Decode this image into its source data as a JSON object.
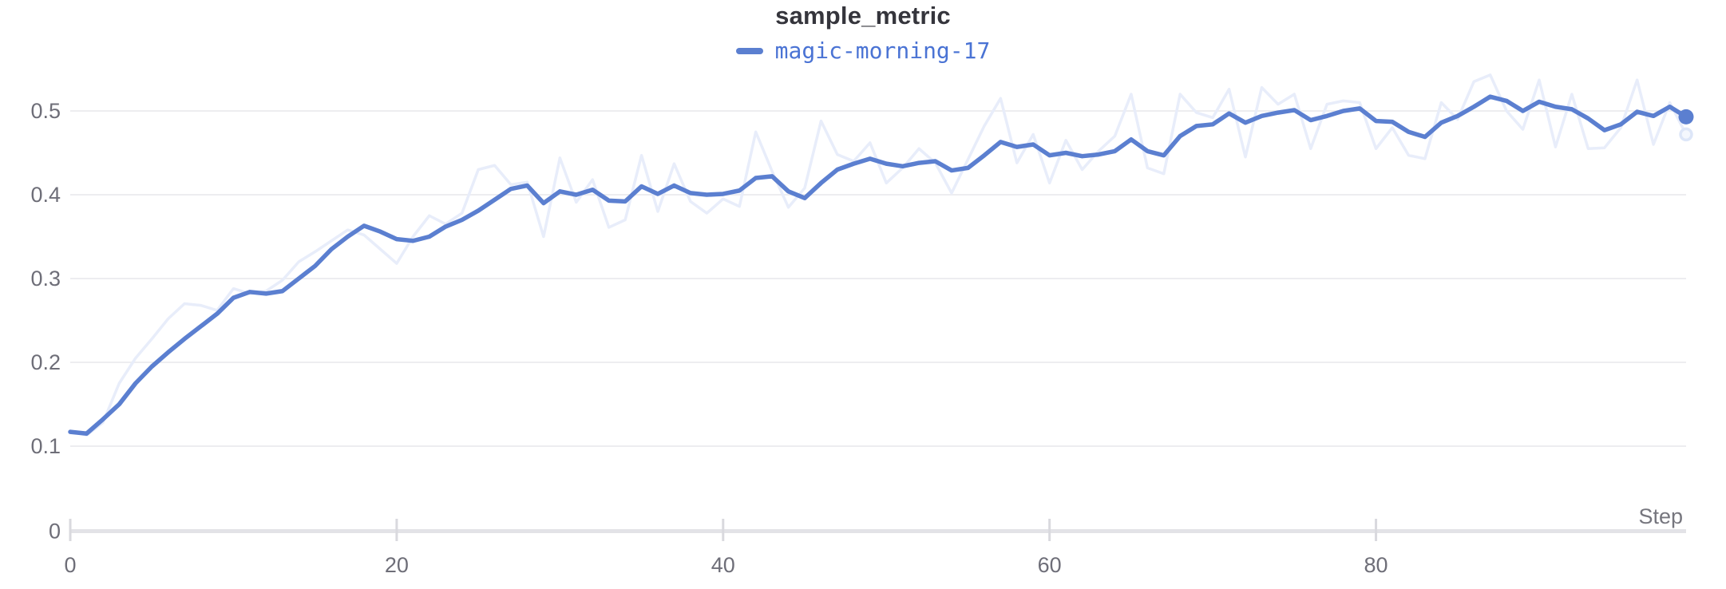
{
  "chart": {
    "title": "sample_metric",
    "legend": [
      {
        "label": "magic-morning-17"
      }
    ],
    "xlabel": "Step"
  },
  "palette": {
    "line_color": "#5b7fd0",
    "raw_line_color": "#e8edfa",
    "raw_ring_fill": "#f4f7fd",
    "raw_ring_stroke": "#dde6f8",
    "legend_text_color": "#4a73d4",
    "title_color": "#35353c",
    "tick_label_color": "#6e6e78",
    "axis_title_color": "#76767e",
    "gridline_color": "#ededf0",
    "axis_line_color": "#e3e3e7",
    "tick_mark_color": "#d9d9de",
    "background": "#ffffff"
  },
  "chart_data": {
    "type": "line",
    "title": "sample_metric",
    "xlabel": "Step",
    "ylabel": "",
    "xlim": [
      0,
      99
    ],
    "ylim": [
      0,
      0.542
    ],
    "x_ticks": [
      0,
      20,
      40,
      60,
      80
    ],
    "x_tick_labels": [
      "0",
      "20",
      "40",
      "60",
      "80"
    ],
    "y_ticks": [
      0,
      0.1,
      0.2,
      0.3,
      0.4,
      0.5
    ],
    "y_tick_labels": [
      "0",
      "0.1",
      "0.2",
      "0.3",
      "0.4",
      "0.5"
    ],
    "grid": "horizontal",
    "legend_position": "top-center",
    "x_start": 0,
    "x_step": 1,
    "n_points": 100,
    "series": [
      {
        "name": "magic-morning-17 (raw)",
        "role": "raw",
        "end_marker": "ring",
        "values": [
          0.118,
          0.113,
          0.128,
          0.175,
          0.205,
          0.228,
          0.252,
          0.27,
          0.268,
          0.262,
          0.288,
          0.282,
          0.285,
          0.298,
          0.32,
          0.332,
          0.345,
          0.358,
          0.352,
          0.335,
          0.318,
          0.35,
          0.375,
          0.365,
          0.378,
          0.43,
          0.435,
          0.412,
          0.415,
          0.35,
          0.444,
          0.391,
          0.418,
          0.361,
          0.37,
          0.447,
          0.38,
          0.437,
          0.392,
          0.378,
          0.395,
          0.386,
          0.475,
          0.428,
          0.385,
          0.408,
          0.488,
          0.448,
          0.44,
          0.462,
          0.414,
          0.432,
          0.455,
          0.438,
          0.402,
          0.442,
          0.482,
          0.515,
          0.438,
          0.472,
          0.414,
          0.465,
          0.43,
          0.452,
          0.47,
          0.52,
          0.432,
          0.425,
          0.52,
          0.498,
          0.492,
          0.526,
          0.445,
          0.528,
          0.508,
          0.52,
          0.455,
          0.508,
          0.512,
          0.51,
          0.455,
          0.48,
          0.447,
          0.443,
          0.51,
          0.49,
          0.535,
          0.543,
          0.5,
          0.478,
          0.537,
          0.457,
          0.52,
          0.455,
          0.456,
          0.48,
          0.537,
          0.46,
          0.51,
          0.472
        ]
      },
      {
        "name": "magic-morning-17",
        "role": "smoothed",
        "end_marker": "dot",
        "values": [
          0.117,
          0.115,
          0.132,
          0.15,
          0.175,
          0.195,
          0.212,
          0.228,
          0.243,
          0.258,
          0.277,
          0.284,
          0.282,
          0.285,
          0.3,
          0.315,
          0.335,
          0.35,
          0.363,
          0.356,
          0.347,
          0.345,
          0.35,
          0.362,
          0.37,
          0.381,
          0.394,
          0.407,
          0.411,
          0.39,
          0.404,
          0.4,
          0.406,
          0.393,
          0.392,
          0.41,
          0.401,
          0.411,
          0.402,
          0.4,
          0.401,
          0.405,
          0.42,
          0.422,
          0.404,
          0.396,
          0.414,
          0.43,
          0.437,
          0.443,
          0.437,
          0.434,
          0.438,
          0.44,
          0.429,
          0.432,
          0.447,
          0.463,
          0.457,
          0.46,
          0.447,
          0.45,
          0.446,
          0.448,
          0.452,
          0.466,
          0.452,
          0.447,
          0.47,
          0.482,
          0.484,
          0.497,
          0.486,
          0.494,
          0.498,
          0.501,
          0.489,
          0.494,
          0.5,
          0.503,
          0.488,
          0.487,
          0.475,
          0.469,
          0.486,
          0.494,
          0.505,
          0.517,
          0.512,
          0.5,
          0.511,
          0.505,
          0.502,
          0.491,
          0.477,
          0.484,
          0.499,
          0.494,
          0.505,
          0.493
        ]
      }
    ]
  }
}
